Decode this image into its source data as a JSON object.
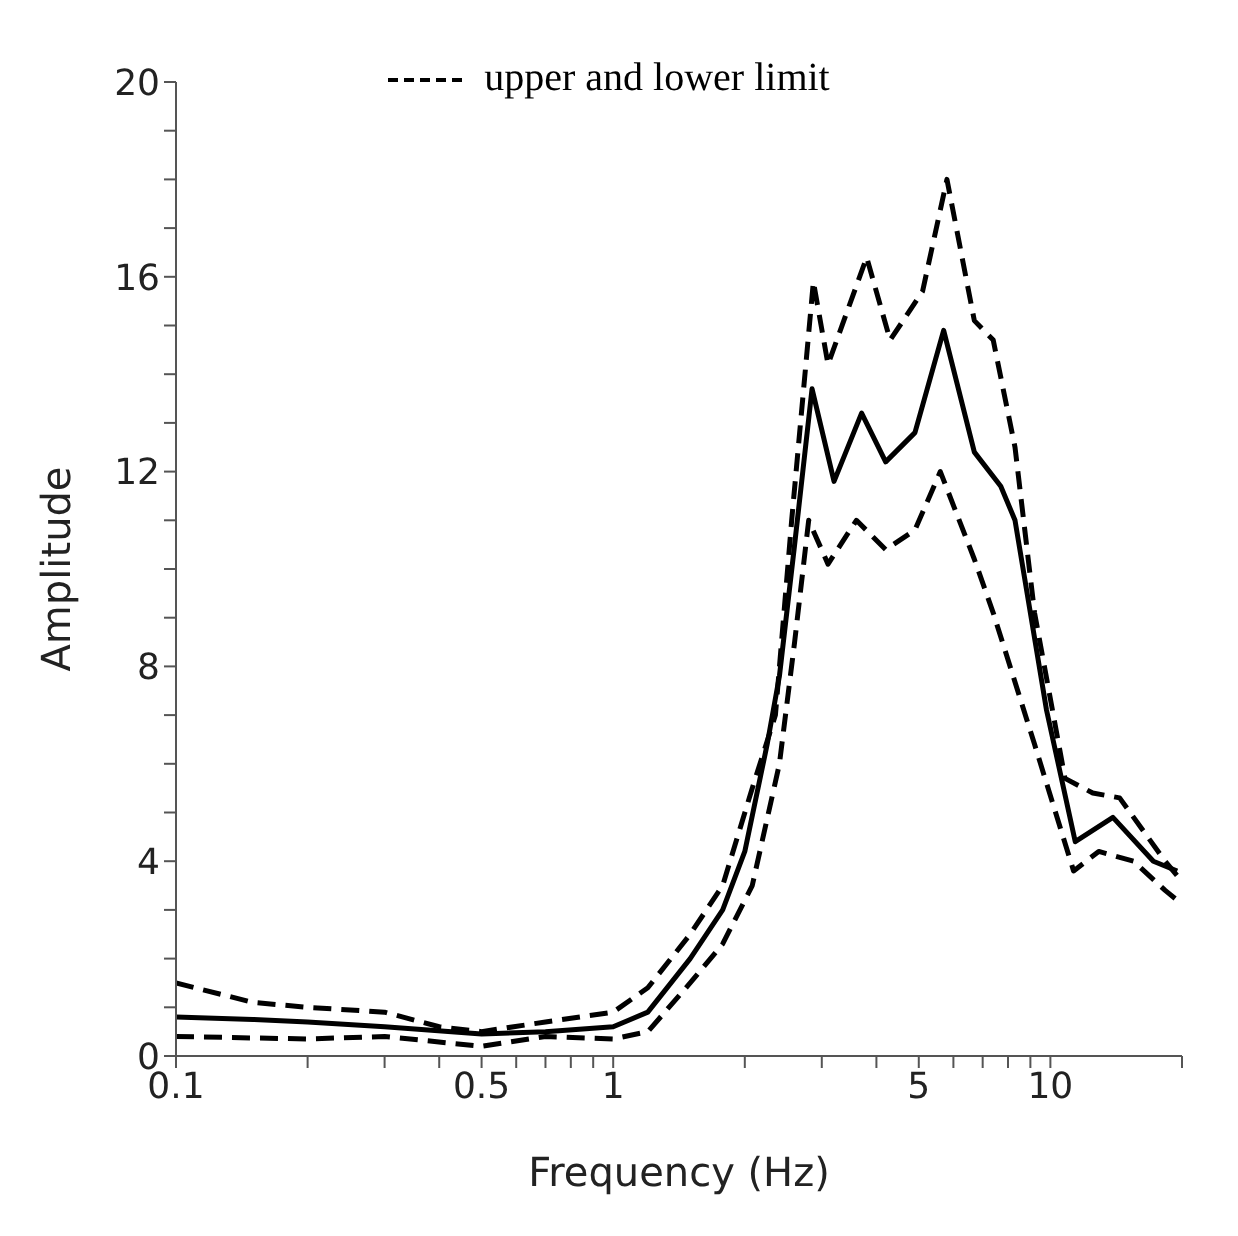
{
  "chart_data": {
    "type": "line",
    "xlabel": "Frequency (Hz)",
    "ylabel": "Amplitude",
    "log": "x",
    "legend": "top",
    "marker": "none",
    "xlim": [
      0.1,
      20
    ],
    "xticks": [
      0.1,
      {
        "value": 0.2,
        "label": null
      },
      {
        "value": 0.3,
        "label": null
      },
      {
        "value": 0.4,
        "label": null
      },
      0.5,
      {
        "value": 0.6,
        "label": null
      },
      {
        "value": 0.7,
        "label": null
      },
      {
        "value": 0.8,
        "label": null
      },
      {
        "value": 0.9,
        "label": null
      },
      1,
      {
        "value": 2,
        "label": null
      },
      {
        "value": 3,
        "label": null
      },
      {
        "value": 4,
        "label": null
      },
      5,
      {
        "value": 6,
        "label": null
      },
      {
        "value": 7,
        "label": null
      },
      {
        "value": 8,
        "label": null
      },
      {
        "value": 9,
        "label": null
      },
      10,
      {
        "value": 20,
        "label": null
      }
    ],
    "ylim": [
      0,
      20
    ],
    "yticks": [
      0,
      {
        "value": 1,
        "label": null
      },
      {
        "value": 2,
        "label": null
      },
      {
        "value": 3,
        "label": null
      },
      4,
      {
        "value": 5,
        "label": null
      },
      {
        "value": 6,
        "label": null
      },
      {
        "value": 7,
        "label": null
      },
      8,
      {
        "value": 9,
        "label": null
      },
      {
        "value": 10,
        "label": null
      },
      {
        "value": 11,
        "label": null
      },
      12,
      {
        "value": 13,
        "label": null
      },
      {
        "value": 14,
        "label": null
      },
      {
        "value": 15,
        "label": null
      },
      16,
      {
        "value": 17,
        "label": null
      },
      {
        "value": 18,
        "label": null
      },
      {
        "value": 19,
        "label": null
      },
      20
    ],
    "series": [
      {
        "color": "#000000",
        "line_style": "solid",
        "x": [
          0.1,
          0.15,
          0.2,
          0.3,
          0.5,
          0.7,
          1,
          1.2,
          1.5,
          1.78,
          2,
          2.25,
          2.4,
          2.6,
          2.85,
          3.2,
          3.7,
          4.2,
          4.9,
          5.7,
          6.7,
          7.7,
          8.3,
          9.8,
          11.4,
          13.9,
          17.2,
          19.5
        ],
        "values": [
          0.8,
          0.75,
          0.7,
          0.6,
          0.45,
          0.5,
          0.6,
          0.9,
          2,
          3,
          4.2,
          6.4,
          7.8,
          10.5,
          13.7,
          11.8,
          13.2,
          12.2,
          12.8,
          14.9,
          12.4,
          11.7,
          11,
          7.1,
          4.4,
          4.9,
          4,
          3.8
        ]
      },
      {
        "name": "upper and lower limit",
        "color": "#000000",
        "line_style": "dashed",
        "x": [
          0.1,
          0.15,
          0.2,
          0.3,
          0.4,
          0.5,
          0.7,
          1,
          1.2,
          1.5,
          1.78,
          2.08,
          2.35,
          2.56,
          2.87,
          3.1,
          3.8,
          4.3,
          5.1,
          5.8,
          6.7,
          7.4,
          8.3,
          9.2,
          10.8,
          12.5,
          14.4,
          18.3,
          19.5
        ],
        "values": [
          1.5,
          1.1,
          1,
          0.9,
          0.6,
          0.5,
          0.7,
          0.9,
          1.4,
          2.5,
          3.5,
          5.5,
          7,
          11,
          15.9,
          14.2,
          16.4,
          14.7,
          15.7,
          18,
          15.1,
          14.7,
          12.5,
          9.1,
          5.7,
          5.4,
          5.3,
          4,
          3.7
        ]
      },
      {
        "color": "#000000",
        "line_style": "dashed",
        "x": [
          0.1,
          0.2,
          0.3,
          0.5,
          0.7,
          1,
          1.2,
          1.5,
          1.78,
          2.08,
          2.4,
          2.6,
          2.8,
          3.1,
          3.6,
          4.2,
          4.9,
          5.6,
          6.7,
          7.4,
          9.2,
          11.3,
          12.9,
          15.5,
          18.3,
          19.5
        ],
        "values": [
          0.4,
          0.35,
          0.4,
          0.2,
          0.4,
          0.35,
          0.5,
          1.5,
          2.3,
          3.5,
          6,
          8.5,
          11,
          10.1,
          11,
          10.4,
          10.8,
          12,
          10.2,
          9.1,
          6.4,
          3.8,
          4.2,
          4,
          3.4,
          3.2
        ]
      }
    ]
  }
}
